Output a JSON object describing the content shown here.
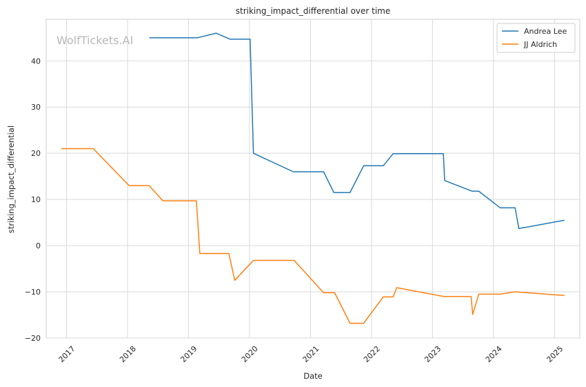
{
  "chart_data": {
    "type": "line",
    "title": "striking_impact_differential over time",
    "xlabel": "Date",
    "ylabel": "striking_impact_differential",
    "watermark": "WolfTickets.AI",
    "xlim": [
      "2016-09-01",
      "2025-06-01"
    ],
    "ylim": [
      -20,
      49
    ],
    "yticks": [
      -20,
      -10,
      0,
      10,
      20,
      30,
      40
    ],
    "ytick_labels": [
      "−20",
      "−10",
      "0",
      "10",
      "20",
      "30",
      "40"
    ],
    "xticks": [
      "2017-01-01",
      "2018-01-01",
      "2019-01-01",
      "2020-01-01",
      "2021-01-01",
      "2022-01-01",
      "2023-01-01",
      "2024-01-01",
      "2025-01-01"
    ],
    "xtick_labels": [
      "2017",
      "2018",
      "2019",
      "2020",
      "2021",
      "2022",
      "2023",
      "2024",
      "2025"
    ],
    "grid": true,
    "legend": "top-right",
    "series": [
      {
        "name": "Andrea Lee",
        "color": "#1f77b4",
        "x": [
          "2018-05-12",
          "2019-02-23",
          "2019-06-15",
          "2019-09-07",
          "2020-01-05",
          "2020-01-25",
          "2020-09-20",
          "2021-03-20",
          "2021-05-20",
          "2021-08-25",
          "2021-11-15",
          "2022-03-12",
          "2022-05-10",
          "2023-03-07",
          "2023-03-15",
          "2023-08-25",
          "2023-10-05",
          "2024-02-10",
          "2024-05-10",
          "2024-06-01",
          "2025-03-01"
        ],
        "y": [
          45,
          45,
          46,
          44.7,
          44.7,
          20,
          16,
          16,
          11.5,
          11.5,
          17.3,
          17.3,
          19.9,
          19.9,
          14.1,
          11.8,
          11.8,
          8.2,
          8.2,
          3.7,
          5.5
        ]
      },
      {
        "name": "JJ Aldrich",
        "color": "#ff7f0e",
        "x": [
          "2016-12-01",
          "2017-06-10",
          "2018-01-10",
          "2018-05-10",
          "2018-08-01",
          "2019-02-17",
          "2019-03-10",
          "2019-08-31",
          "2019-10-05",
          "2020-01-25",
          "2020-09-25",
          "2021-03-20",
          "2021-05-25",
          "2021-08-25",
          "2021-11-15",
          "2022-03-12",
          "2022-05-10",
          "2022-06-01",
          "2023-03-07",
          "2023-08-20",
          "2023-08-30",
          "2023-10-05",
          "2024-02-10",
          "2024-05-10",
          "2025-03-01"
        ],
        "y": [
          21,
          21,
          13,
          13,
          9.7,
          9.7,
          -1.7,
          -1.7,
          -7.5,
          -3.2,
          -3.2,
          -10.2,
          -10.2,
          -16.8,
          -16.8,
          -11.1,
          -11.1,
          -9.1,
          -11,
          -11,
          -14.9,
          -10.5,
          -10.5,
          -10,
          -10.8
        ]
      }
    ]
  }
}
